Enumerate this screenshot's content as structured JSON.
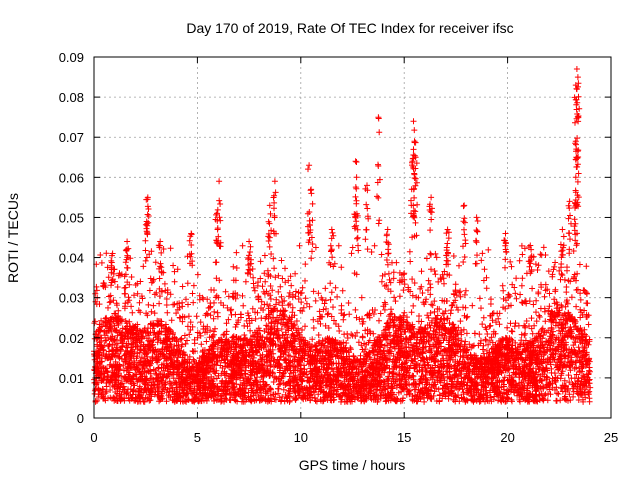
{
  "chart_data": {
    "type": "scatter",
    "title": "Day 170 of 2019, Rate Of TEC Index for receiver ifsc",
    "xlabel": "GPS time / hours",
    "ylabel": "ROTI / TECUs",
    "xlim": [
      0,
      25
    ],
    "ylim": [
      0,
      0.09
    ],
    "xticks": [
      "0",
      "5",
      "10",
      "15",
      "20",
      "25"
    ],
    "xtick_values": [
      0,
      5,
      10,
      15,
      20,
      25
    ],
    "yticks": [
      "0",
      "0.01",
      "0.02",
      "0.03",
      "0.04",
      "0.05",
      "0.06",
      "0.07",
      "0.08",
      "0.09"
    ],
    "ytick_values": [
      0,
      0.01,
      0.02,
      0.03,
      0.04,
      0.05,
      0.06,
      0.07,
      0.08,
      0.09
    ],
    "grid": true,
    "marker": "+",
    "color": "#ff0000",
    "series": [
      {
        "name": "ROTI",
        "description_generator": "dense scatter, time 0-24 h",
        "density_per_hour": 260,
        "x_range": [
          0,
          24
        ],
        "base_mean": 0.013,
        "peaks": [
          {
            "x": 2.6,
            "y": 0.055
          },
          {
            "x": 2.55,
            "y": 0.049
          },
          {
            "x": 1.6,
            "y": 0.044
          },
          {
            "x": 3.2,
            "y": 0.044
          },
          {
            "x": 6.05,
            "y": 0.059
          },
          {
            "x": 5.95,
            "y": 0.051
          },
          {
            "x": 8.75,
            "y": 0.059
          },
          {
            "x": 8.5,
            "y": 0.053
          },
          {
            "x": 10.4,
            "y": 0.063
          },
          {
            "x": 10.5,
            "y": 0.057
          },
          {
            "x": 12.65,
            "y": 0.064
          },
          {
            "x": 12.7,
            "y": 0.06
          },
          {
            "x": 13.2,
            "y": 0.058
          },
          {
            "x": 13.75,
            "y": 0.075
          },
          {
            "x": 15.45,
            "y": 0.074
          },
          {
            "x": 15.5,
            "y": 0.069
          },
          {
            "x": 15.55,
            "y": 0.065
          },
          {
            "x": 15.4,
            "y": 0.064
          },
          {
            "x": 16.3,
            "y": 0.055
          },
          {
            "x": 17.9,
            "y": 0.053
          },
          {
            "x": 18.5,
            "y": 0.05
          },
          {
            "x": 19.9,
            "y": 0.046
          },
          {
            "x": 22.65,
            "y": 0.047
          },
          {
            "x": 23.35,
            "y": 0.087
          },
          {
            "x": 23.4,
            "y": 0.085
          },
          {
            "x": 23.3,
            "y": 0.083
          },
          {
            "x": 23.35,
            "y": 0.082
          },
          {
            "x": 23.3,
            "y": 0.069
          },
          {
            "x": 23.3,
            "y": 0.06
          },
          {
            "x": 23.0,
            "y": 0.054
          },
          {
            "x": 0.9,
            "y": 0.041
          },
          {
            "x": 4.7,
            "y": 0.046
          },
          {
            "x": 7.5,
            "y": 0.044
          },
          {
            "x": 11.5,
            "y": 0.047
          },
          {
            "x": 14.2,
            "y": 0.047
          },
          {
            "x": 17.1,
            "y": 0.047
          },
          {
            "x": 21.1,
            "y": 0.043
          }
        ]
      }
    ]
  }
}
